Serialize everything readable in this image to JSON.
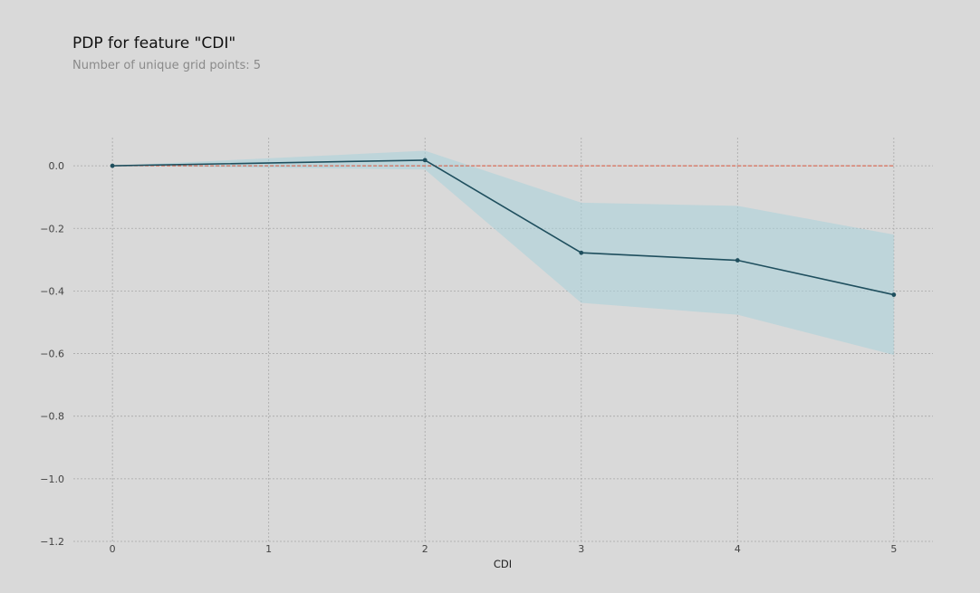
{
  "title": "PDP for feature \"CDI\"",
  "subtitle": "Number of unique grid points: 5",
  "chart_data": {
    "type": "line",
    "xlabel": "CDI",
    "ylabel": "",
    "x": [
      0,
      1,
      2,
      3,
      4,
      5
    ],
    "x_ticks": [
      0,
      1,
      2,
      3,
      4,
      5
    ],
    "y_ticks": [
      0.0,
      -0.2,
      -0.4,
      -0.6,
      -0.8,
      -1.0,
      -1.2
    ],
    "y_tick_labels": [
      "0.0",
      "−0.2",
      "−0.4",
      "−0.6",
      "−0.8",
      "−1.0",
      "−1.2"
    ],
    "xlim": [
      -0.25,
      5.25
    ],
    "ylim": [
      -1.2,
      0.09
    ],
    "grid": true,
    "series": [
      {
        "x": [
          0,
          2,
          3,
          4,
          5
        ],
        "values": [
          0.0,
          0.018,
          -0.278,
          -0.302,
          -0.412
        ],
        "upper": [
          0.0,
          0.048,
          -0.118,
          -0.128,
          -0.22
        ],
        "lower": [
          0.0,
          -0.012,
          -0.438,
          -0.476,
          -0.604
        ]
      }
    ],
    "reference_line": {
      "y": 0,
      "style": "dashed"
    },
    "colors": {
      "line": "#1f4f5e",
      "band": "#a8d1db",
      "reference": "#d9533a",
      "grid": "#a8a8a8",
      "background": "#d9d9d9"
    }
  }
}
